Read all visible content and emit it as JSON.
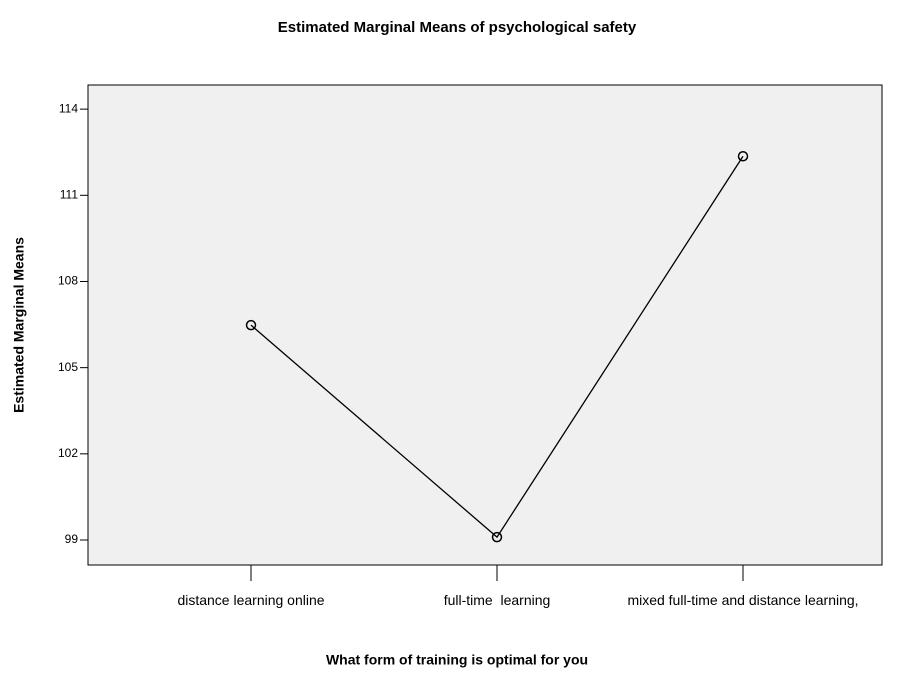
{
  "chart_data": {
    "type": "line",
    "title": "Estimated Marginal Means of psychological safety",
    "x_label": "What form of training is optimal for you",
    "y_label": "Estimated Marginal Means",
    "categories": [
      "distance learning online",
      "full-time  learning",
      "mixed full-time and distance learning,"
    ],
    "values": [
      106.48,
      99.1,
      112.36
    ],
    "color": "#000000",
    "ylim": [
      98.13,
      114.84
    ],
    "yticks": [
      99,
      102,
      105,
      108,
      111,
      114
    ],
    "markers": "open-circle"
  }
}
